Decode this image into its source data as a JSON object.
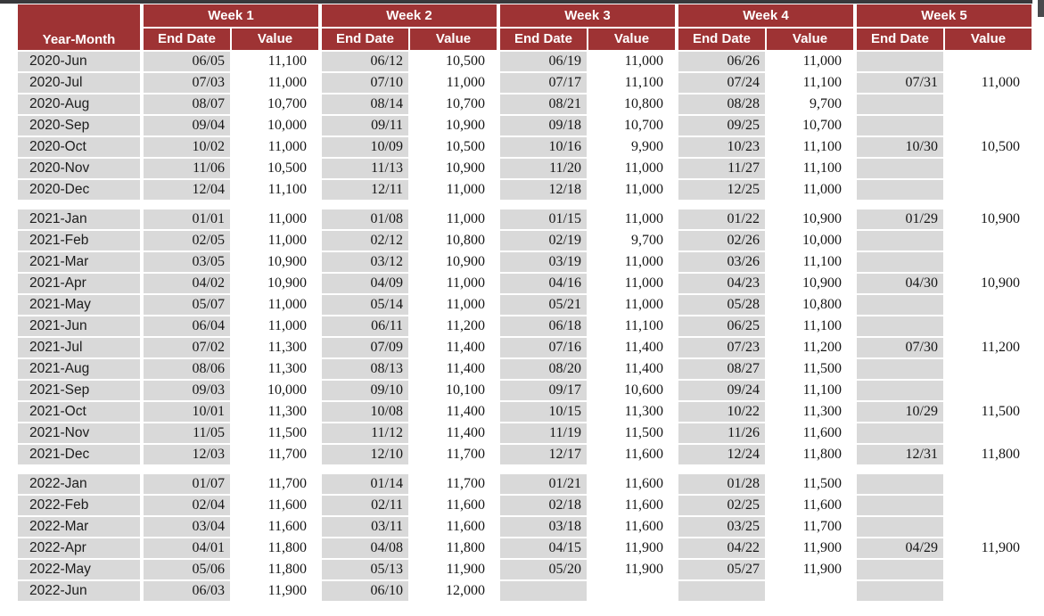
{
  "colors": {
    "header_bg": "#9e3334",
    "cell_gray": "#d9d9d9",
    "topbar": "#38383b",
    "scroll_thumb": "#4a4a4d",
    "header_text": "#ffffff",
    "body_text": "#161616"
  },
  "table": {
    "corner_header": "Year-Month",
    "week_headers": [
      "Week 1",
      "Week 2",
      "Week 3",
      "Week 4",
      "Week 5"
    ],
    "sub_headers": {
      "end_date": "End Date",
      "value": "Value"
    },
    "groups": [
      {
        "year": "2020",
        "rows": [
          {
            "month": "2020-Jun",
            "weeks": [
              [
                "06/05",
                "11,100"
              ],
              [
                "06/12",
                "10,500"
              ],
              [
                "06/19",
                "11,000"
              ],
              [
                "06/26",
                "11,000"
              ],
              null
            ]
          },
          {
            "month": "2020-Jul",
            "weeks": [
              [
                "07/03",
                "11,000"
              ],
              [
                "07/10",
                "11,000"
              ],
              [
                "07/17",
                "11,100"
              ],
              [
                "07/24",
                "11,100"
              ],
              [
                "07/31",
                "11,000"
              ]
            ]
          },
          {
            "month": "2020-Aug",
            "weeks": [
              [
                "08/07",
                "10,700"
              ],
              [
                "08/14",
                "10,700"
              ],
              [
                "08/21",
                "10,800"
              ],
              [
                "08/28",
                "9,700"
              ],
              null
            ]
          },
          {
            "month": "2020-Sep",
            "weeks": [
              [
                "09/04",
                "10,000"
              ],
              [
                "09/11",
                "10,900"
              ],
              [
                "09/18",
                "10,700"
              ],
              [
                "09/25",
                "10,700"
              ],
              null
            ]
          },
          {
            "month": "2020-Oct",
            "weeks": [
              [
                "10/02",
                "11,000"
              ],
              [
                "10/09",
                "10,500"
              ],
              [
                "10/16",
                "9,900"
              ],
              [
                "10/23",
                "11,100"
              ],
              [
                "10/30",
                "10,500"
              ]
            ]
          },
          {
            "month": "2020-Nov",
            "weeks": [
              [
                "11/06",
                "10,500"
              ],
              [
                "11/13",
                "10,900"
              ],
              [
                "11/20",
                "11,000"
              ],
              [
                "11/27",
                "11,100"
              ],
              null
            ]
          },
          {
            "month": "2020-Dec",
            "weeks": [
              [
                "12/04",
                "11,100"
              ],
              [
                "12/11",
                "11,000"
              ],
              [
                "12/18",
                "11,000"
              ],
              [
                "12/25",
                "11,000"
              ],
              null
            ]
          }
        ]
      },
      {
        "year": "2021",
        "rows": [
          {
            "month": "2021-Jan",
            "weeks": [
              [
                "01/01",
                "11,000"
              ],
              [
                "01/08",
                "11,000"
              ],
              [
                "01/15",
                "11,000"
              ],
              [
                "01/22",
                "10,900"
              ],
              [
                "01/29",
                "10,900"
              ]
            ]
          },
          {
            "month": "2021-Feb",
            "weeks": [
              [
                "02/05",
                "11,000"
              ],
              [
                "02/12",
                "10,800"
              ],
              [
                "02/19",
                "9,700"
              ],
              [
                "02/26",
                "10,000"
              ],
              null
            ]
          },
          {
            "month": "2021-Mar",
            "weeks": [
              [
                "03/05",
                "10,900"
              ],
              [
                "03/12",
                "10,900"
              ],
              [
                "03/19",
                "11,000"
              ],
              [
                "03/26",
                "11,100"
              ],
              null
            ]
          },
          {
            "month": "2021-Apr",
            "weeks": [
              [
                "04/02",
                "10,900"
              ],
              [
                "04/09",
                "11,000"
              ],
              [
                "04/16",
                "11,000"
              ],
              [
                "04/23",
                "10,900"
              ],
              [
                "04/30",
                "10,900"
              ]
            ]
          },
          {
            "month": "2021-May",
            "weeks": [
              [
                "05/07",
                "11,000"
              ],
              [
                "05/14",
                "11,000"
              ],
              [
                "05/21",
                "11,000"
              ],
              [
                "05/28",
                "10,800"
              ],
              null
            ]
          },
          {
            "month": "2021-Jun",
            "weeks": [
              [
                "06/04",
                "11,000"
              ],
              [
                "06/11",
                "11,200"
              ],
              [
                "06/18",
                "11,100"
              ],
              [
                "06/25",
                "11,100"
              ],
              null
            ]
          },
          {
            "month": "2021-Jul",
            "weeks": [
              [
                "07/02",
                "11,300"
              ],
              [
                "07/09",
                "11,400"
              ],
              [
                "07/16",
                "11,400"
              ],
              [
                "07/23",
                "11,200"
              ],
              [
                "07/30",
                "11,200"
              ]
            ]
          },
          {
            "month": "2021-Aug",
            "weeks": [
              [
                "08/06",
                "11,300"
              ],
              [
                "08/13",
                "11,400"
              ],
              [
                "08/20",
                "11,400"
              ],
              [
                "08/27",
                "11,500"
              ],
              null
            ]
          },
          {
            "month": "2021-Sep",
            "weeks": [
              [
                "09/03",
                "10,000"
              ],
              [
                "09/10",
                "10,100"
              ],
              [
                "09/17",
                "10,600"
              ],
              [
                "09/24",
                "11,100"
              ],
              null
            ]
          },
          {
            "month": "2021-Oct",
            "weeks": [
              [
                "10/01",
                "11,300"
              ],
              [
                "10/08",
                "11,400"
              ],
              [
                "10/15",
                "11,300"
              ],
              [
                "10/22",
                "11,300"
              ],
              [
                "10/29",
                "11,500"
              ]
            ]
          },
          {
            "month": "2021-Nov",
            "weeks": [
              [
                "11/05",
                "11,500"
              ],
              [
                "11/12",
                "11,400"
              ],
              [
                "11/19",
                "11,500"
              ],
              [
                "11/26",
                "11,600"
              ],
              null
            ]
          },
          {
            "month": "2021-Dec",
            "weeks": [
              [
                "12/03",
                "11,700"
              ],
              [
                "12/10",
                "11,700"
              ],
              [
                "12/17",
                "11,600"
              ],
              [
                "12/24",
                "11,800"
              ],
              [
                "12/31",
                "11,800"
              ]
            ]
          }
        ]
      },
      {
        "year": "2022",
        "rows": [
          {
            "month": "2022-Jan",
            "weeks": [
              [
                "01/07",
                "11,700"
              ],
              [
                "01/14",
                "11,700"
              ],
              [
                "01/21",
                "11,600"
              ],
              [
                "01/28",
                "11,500"
              ],
              null
            ]
          },
          {
            "month": "2022-Feb",
            "weeks": [
              [
                "02/04",
                "11,600"
              ],
              [
                "02/11",
                "11,600"
              ],
              [
                "02/18",
                "11,600"
              ],
              [
                "02/25",
                "11,600"
              ],
              null
            ]
          },
          {
            "month": "2022-Mar",
            "weeks": [
              [
                "03/04",
                "11,600"
              ],
              [
                "03/11",
                "11,600"
              ],
              [
                "03/18",
                "11,600"
              ],
              [
                "03/25",
                "11,700"
              ],
              null
            ]
          },
          {
            "month": "2022-Apr",
            "weeks": [
              [
                "04/01",
                "11,800"
              ],
              [
                "04/08",
                "11,800"
              ],
              [
                "04/15",
                "11,900"
              ],
              [
                "04/22",
                "11,900"
              ],
              [
                "04/29",
                "11,900"
              ]
            ]
          },
          {
            "month": "2022-May",
            "weeks": [
              [
                "05/06",
                "11,800"
              ],
              [
                "05/13",
                "11,900"
              ],
              [
                "05/20",
                "11,900"
              ],
              [
                "05/27",
                "11,900"
              ],
              null
            ]
          },
          {
            "month": "2022-Jun",
            "weeks": [
              [
                "06/03",
                "11,900"
              ],
              [
                "06/10",
                "12,000"
              ],
              null,
              null,
              null
            ]
          }
        ]
      }
    ]
  }
}
